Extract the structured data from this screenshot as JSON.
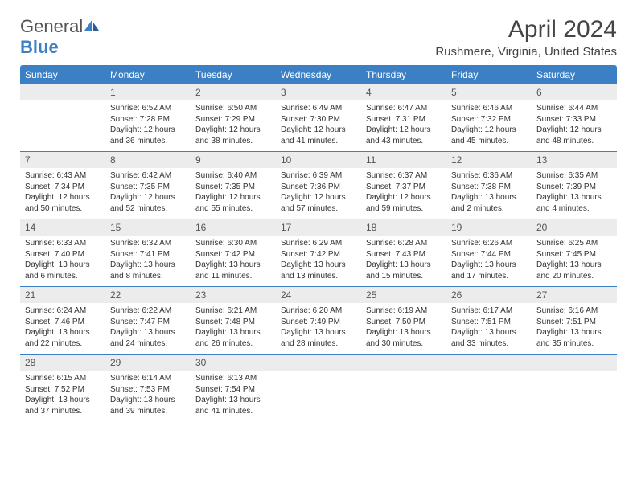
{
  "logo": {
    "general": "General",
    "blue": "Blue"
  },
  "header": {
    "month_title": "April 2024",
    "location": "Rushmere, Virginia, United States"
  },
  "colors": {
    "accent": "#3b7fc4",
    "daynum_bg": "#ececec",
    "text": "#333333",
    "border": "#3b7fc4"
  },
  "day_names": [
    "Sunday",
    "Monday",
    "Tuesday",
    "Wednesday",
    "Thursday",
    "Friday",
    "Saturday"
  ],
  "weeks": [
    [
      {
        "empty": true
      },
      {
        "n": "1",
        "sunrise": "Sunrise: 6:52 AM",
        "sunset": "Sunset: 7:28 PM",
        "daylight1": "Daylight: 12 hours",
        "daylight2": "and 36 minutes."
      },
      {
        "n": "2",
        "sunrise": "Sunrise: 6:50 AM",
        "sunset": "Sunset: 7:29 PM",
        "daylight1": "Daylight: 12 hours",
        "daylight2": "and 38 minutes."
      },
      {
        "n": "3",
        "sunrise": "Sunrise: 6:49 AM",
        "sunset": "Sunset: 7:30 PM",
        "daylight1": "Daylight: 12 hours",
        "daylight2": "and 41 minutes."
      },
      {
        "n": "4",
        "sunrise": "Sunrise: 6:47 AM",
        "sunset": "Sunset: 7:31 PM",
        "daylight1": "Daylight: 12 hours",
        "daylight2": "and 43 minutes."
      },
      {
        "n": "5",
        "sunrise": "Sunrise: 6:46 AM",
        "sunset": "Sunset: 7:32 PM",
        "daylight1": "Daylight: 12 hours",
        "daylight2": "and 45 minutes."
      },
      {
        "n": "6",
        "sunrise": "Sunrise: 6:44 AM",
        "sunset": "Sunset: 7:33 PM",
        "daylight1": "Daylight: 12 hours",
        "daylight2": "and 48 minutes."
      }
    ],
    [
      {
        "n": "7",
        "sunrise": "Sunrise: 6:43 AM",
        "sunset": "Sunset: 7:34 PM",
        "daylight1": "Daylight: 12 hours",
        "daylight2": "and 50 minutes."
      },
      {
        "n": "8",
        "sunrise": "Sunrise: 6:42 AM",
        "sunset": "Sunset: 7:35 PM",
        "daylight1": "Daylight: 12 hours",
        "daylight2": "and 52 minutes."
      },
      {
        "n": "9",
        "sunrise": "Sunrise: 6:40 AM",
        "sunset": "Sunset: 7:35 PM",
        "daylight1": "Daylight: 12 hours",
        "daylight2": "and 55 minutes."
      },
      {
        "n": "10",
        "sunrise": "Sunrise: 6:39 AM",
        "sunset": "Sunset: 7:36 PM",
        "daylight1": "Daylight: 12 hours",
        "daylight2": "and 57 minutes."
      },
      {
        "n": "11",
        "sunrise": "Sunrise: 6:37 AM",
        "sunset": "Sunset: 7:37 PM",
        "daylight1": "Daylight: 12 hours",
        "daylight2": "and 59 minutes."
      },
      {
        "n": "12",
        "sunrise": "Sunrise: 6:36 AM",
        "sunset": "Sunset: 7:38 PM",
        "daylight1": "Daylight: 13 hours",
        "daylight2": "and 2 minutes."
      },
      {
        "n": "13",
        "sunrise": "Sunrise: 6:35 AM",
        "sunset": "Sunset: 7:39 PM",
        "daylight1": "Daylight: 13 hours",
        "daylight2": "and 4 minutes."
      }
    ],
    [
      {
        "n": "14",
        "sunrise": "Sunrise: 6:33 AM",
        "sunset": "Sunset: 7:40 PM",
        "daylight1": "Daylight: 13 hours",
        "daylight2": "and 6 minutes."
      },
      {
        "n": "15",
        "sunrise": "Sunrise: 6:32 AM",
        "sunset": "Sunset: 7:41 PM",
        "daylight1": "Daylight: 13 hours",
        "daylight2": "and 8 minutes."
      },
      {
        "n": "16",
        "sunrise": "Sunrise: 6:30 AM",
        "sunset": "Sunset: 7:42 PM",
        "daylight1": "Daylight: 13 hours",
        "daylight2": "and 11 minutes."
      },
      {
        "n": "17",
        "sunrise": "Sunrise: 6:29 AM",
        "sunset": "Sunset: 7:42 PM",
        "daylight1": "Daylight: 13 hours",
        "daylight2": "and 13 minutes."
      },
      {
        "n": "18",
        "sunrise": "Sunrise: 6:28 AM",
        "sunset": "Sunset: 7:43 PM",
        "daylight1": "Daylight: 13 hours",
        "daylight2": "and 15 minutes."
      },
      {
        "n": "19",
        "sunrise": "Sunrise: 6:26 AM",
        "sunset": "Sunset: 7:44 PM",
        "daylight1": "Daylight: 13 hours",
        "daylight2": "and 17 minutes."
      },
      {
        "n": "20",
        "sunrise": "Sunrise: 6:25 AM",
        "sunset": "Sunset: 7:45 PM",
        "daylight1": "Daylight: 13 hours",
        "daylight2": "and 20 minutes."
      }
    ],
    [
      {
        "n": "21",
        "sunrise": "Sunrise: 6:24 AM",
        "sunset": "Sunset: 7:46 PM",
        "daylight1": "Daylight: 13 hours",
        "daylight2": "and 22 minutes."
      },
      {
        "n": "22",
        "sunrise": "Sunrise: 6:22 AM",
        "sunset": "Sunset: 7:47 PM",
        "daylight1": "Daylight: 13 hours",
        "daylight2": "and 24 minutes."
      },
      {
        "n": "23",
        "sunrise": "Sunrise: 6:21 AM",
        "sunset": "Sunset: 7:48 PM",
        "daylight1": "Daylight: 13 hours",
        "daylight2": "and 26 minutes."
      },
      {
        "n": "24",
        "sunrise": "Sunrise: 6:20 AM",
        "sunset": "Sunset: 7:49 PM",
        "daylight1": "Daylight: 13 hours",
        "daylight2": "and 28 minutes."
      },
      {
        "n": "25",
        "sunrise": "Sunrise: 6:19 AM",
        "sunset": "Sunset: 7:50 PM",
        "daylight1": "Daylight: 13 hours",
        "daylight2": "and 30 minutes."
      },
      {
        "n": "26",
        "sunrise": "Sunrise: 6:17 AM",
        "sunset": "Sunset: 7:51 PM",
        "daylight1": "Daylight: 13 hours",
        "daylight2": "and 33 minutes."
      },
      {
        "n": "27",
        "sunrise": "Sunrise: 6:16 AM",
        "sunset": "Sunset: 7:51 PM",
        "daylight1": "Daylight: 13 hours",
        "daylight2": "and 35 minutes."
      }
    ],
    [
      {
        "n": "28",
        "sunrise": "Sunrise: 6:15 AM",
        "sunset": "Sunset: 7:52 PM",
        "daylight1": "Daylight: 13 hours",
        "daylight2": "and 37 minutes."
      },
      {
        "n": "29",
        "sunrise": "Sunrise: 6:14 AM",
        "sunset": "Sunset: 7:53 PM",
        "daylight1": "Daylight: 13 hours",
        "daylight2": "and 39 minutes."
      },
      {
        "n": "30",
        "sunrise": "Sunrise: 6:13 AM",
        "sunset": "Sunset: 7:54 PM",
        "daylight1": "Daylight: 13 hours",
        "daylight2": "and 41 minutes."
      },
      {
        "empty": true
      },
      {
        "empty": true
      },
      {
        "empty": true
      },
      {
        "empty": true
      }
    ]
  ]
}
